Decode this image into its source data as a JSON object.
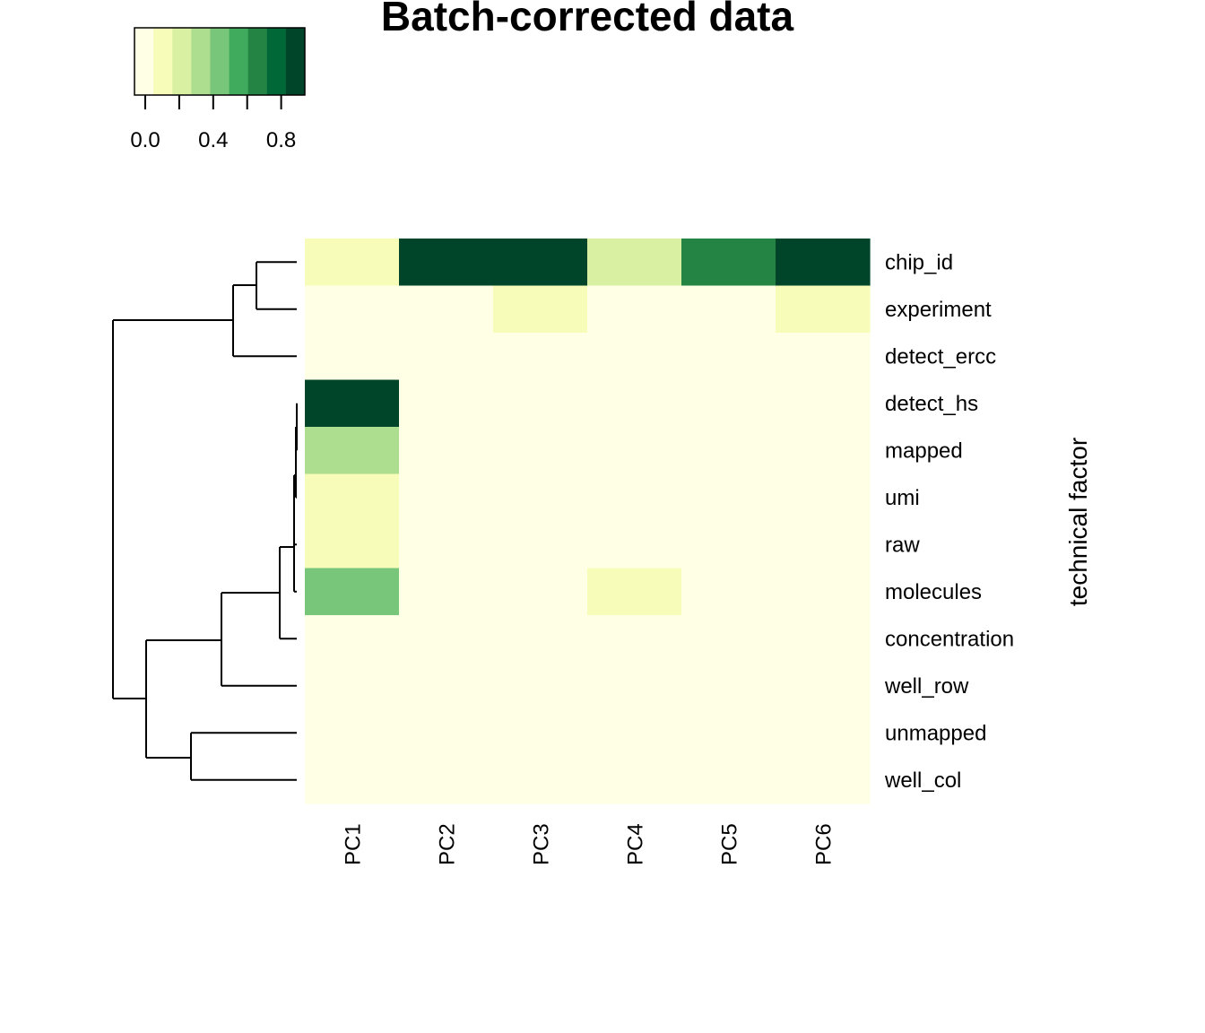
{
  "chart_data": {
    "type": "heatmap",
    "title": "Batch-corrected data",
    "xlabel": "",
    "ylabel": "technical factor",
    "columns": [
      "PC1",
      "PC2",
      "PC3",
      "PC4",
      "PC5",
      "PC6"
    ],
    "rows": [
      "chip_id",
      "experiment",
      "detect_ercc",
      "detect_hs",
      "mapped",
      "umi",
      "raw",
      "molecules",
      "concentration",
      "well_row",
      "unmapped",
      "well_col"
    ],
    "values": [
      [
        0.15,
        0.95,
        0.95,
        0.25,
        0.75,
        0.95
      ],
      [
        0.05,
        0.05,
        0.15,
        0.05,
        0.05,
        0.15
      ],
      [
        0.05,
        0.05,
        0.05,
        0.05,
        0.05,
        0.05
      ],
      [
        0.95,
        0.05,
        0.05,
        0.05,
        0.05,
        0.05
      ],
      [
        0.35,
        0.05,
        0.05,
        0.05,
        0.05,
        0.05
      ],
      [
        0.15,
        0.05,
        0.05,
        0.05,
        0.05,
        0.05
      ],
      [
        0.15,
        0.05,
        0.05,
        0.05,
        0.05,
        0.05
      ],
      [
        0.55,
        0.05,
        0.05,
        0.15,
        0.05,
        0.05
      ],
      [
        0.05,
        0.05,
        0.05,
        0.05,
        0.05,
        0.05
      ],
      [
        0.05,
        0.05,
        0.05,
        0.05,
        0.05,
        0.05
      ],
      [
        0.05,
        0.05,
        0.05,
        0.05,
        0.05,
        0.05
      ],
      [
        0.05,
        0.05,
        0.05,
        0.05,
        0.05,
        0.05
      ]
    ],
    "color_scale": {
      "range": [
        0,
        1
      ],
      "colors": [
        "#FFFFE5",
        "#F7FCB9",
        "#D9F0A3",
        "#ADDD8E",
        "#78C679",
        "#41AB5D",
        "#238443",
        "#006837",
        "#004529"
      ],
      "ticks": [
        0.0,
        0.2,
        0.4,
        0.6,
        0.8
      ],
      "tick_labels": [
        "0.0",
        "0.4",
        "0.8"
      ]
    },
    "dendrogram": "row clustering tree on the left side",
    "legend_position": "top-left"
  }
}
